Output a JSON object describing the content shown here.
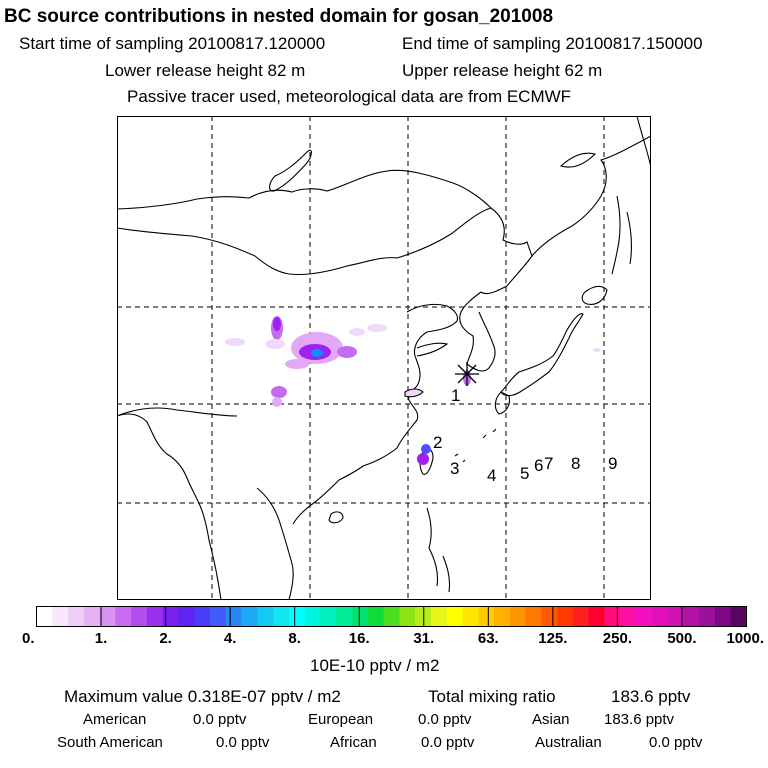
{
  "header": {
    "title": "BC  source contributions in nested domain for gosan_201008",
    "start_label": "Start time of sampling 20100817.120000",
    "end_label": "End time of sampling 20100817.150000",
    "lower_label": "Lower release height   82 m",
    "upper_label": "Upper release height   62 m",
    "note": "Passive tracer used, meteorological data are from ECMWF"
  },
  "map": {
    "receptor_markers": [
      "1",
      "2",
      "3",
      "4",
      "5",
      "6",
      "7",
      "8",
      "9"
    ],
    "receptor_icon": "star-asterisk-icon",
    "hotspot_colors": [
      "#f1d9fb",
      "#e4a9f6",
      "#c36cf0",
      "#a020ef",
      "#7a2ff3",
      "#4f4fff",
      "#0e8ff3"
    ]
  },
  "colorbar": {
    "colors": [
      "#ffffff",
      "#f8e8fb",
      "#eecdf7",
      "#e4b3f4",
      "#d993f2",
      "#c86cf1",
      "#b24cef",
      "#9a2fee",
      "#7b22f0",
      "#5f23f4",
      "#4b3cf7",
      "#3f5cf8",
      "#2c85f5",
      "#1aa9f2",
      "#15c9f0",
      "#14e6f0",
      "#00ffff",
      "#00f5dc",
      "#00f0bb",
      "#00ec96",
      "#00e36f",
      "#10dd3c",
      "#4cdc1e",
      "#8ee314",
      "#b7ed1a",
      "#e7f51b",
      "#ffff00",
      "#ffe600",
      "#ffcc00",
      "#ffb000",
      "#ff9500",
      "#ff7800",
      "#ff5a00",
      "#ff3a00",
      "#ff1f1f",
      "#ff0033",
      "#ff0e79",
      "#ff0ea6",
      "#f30ebe",
      "#e30eb9",
      "#cf12b1",
      "#b411a6",
      "#9b1098",
      "#7d0a83",
      "#5a0660"
    ],
    "ticks": [
      "0.",
      "1.",
      "2.",
      "4.",
      "8.",
      "16.",
      "31.",
      "63.",
      "125.",
      "250.",
      "500.",
      "1000."
    ],
    "unit": "10E-10 pptv / m2"
  },
  "footer": {
    "max_label": "Maximum value  0.318E-07 pptv / m2",
    "total_label": "Total mixing ratio",
    "total_value": "183.6 pptv",
    "rows": [
      [
        {
          "label": "American",
          "value": "0.0 pptv"
        },
        {
          "label": "European",
          "value": "0.0 pptv"
        },
        {
          "label": "Asian",
          "value": "183.6 pptv"
        }
      ],
      [
        {
          "label": "South American",
          "value": "0.0 pptv"
        },
        {
          "label": "African",
          "value": "0.0 pptv"
        },
        {
          "label": "Australian",
          "value": "0.0 pptv"
        }
      ]
    ]
  }
}
